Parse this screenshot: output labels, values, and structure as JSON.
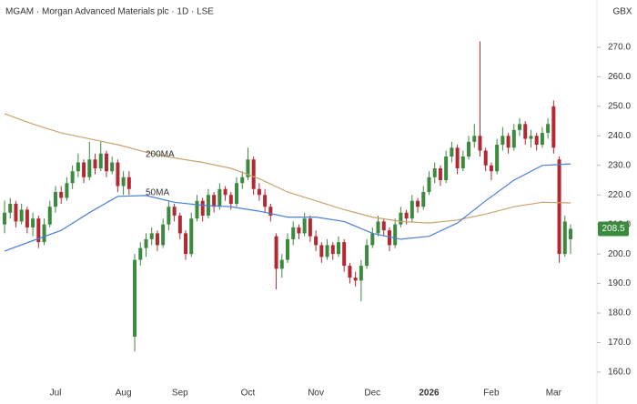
{
  "chart_data": {
    "type": "candlestick",
    "title": "MGAM · Morgan Advanced Materials plc · 1D · LSE",
    "currency": "GBX",
    "up_color": "#3b8a3e",
    "down_color": "#b22833",
    "open": [
      210,
      214,
      217,
      211,
      215,
      209,
      212,
      204,
      210,
      216,
      221,
      219,
      224,
      228,
      231,
      226,
      232,
      229,
      234,
      228,
      231,
      223,
      226,
      172,
      198,
      202,
      205,
      207,
      203,
      210,
      216,
      213,
      207,
      200,
      212,
      218,
      213,
      220,
      216,
      222,
      220,
      217,
      224,
      226,
      232,
      222,
      220,
      216,
      206,
      195,
      198,
      205,
      209,
      207,
      212,
      206,
      203,
      199,
      203,
      200,
      204,
      196,
      192,
      191,
      196,
      203,
      207,
      211,
      208,
      203,
      210,
      214,
      212,
      218,
      216,
      221,
      226,
      229,
      225,
      233,
      236,
      229,
      233,
      238,
      240,
      235,
      230,
      228,
      237,
      240,
      236,
      242,
      244,
      239,
      240,
      237,
      241,
      250,
      232,
      200,
      205
    ],
    "high": [
      218,
      219,
      218,
      217,
      216,
      214,
      213,
      212,
      218,
      223,
      223,
      226,
      230,
      234,
      232,
      238,
      234,
      238,
      235,
      233,
      232,
      228,
      228,
      200,
      204,
      207,
      209,
      208,
      212,
      218,
      217,
      214,
      208,
      214,
      220,
      219,
      222,
      221,
      224,
      223,
      221,
      226,
      228,
      236,
      233,
      224,
      222,
      217,
      207,
      200,
      207,
      211,
      210,
      214,
      213,
      208,
      204,
      205,
      204,
      206,
      205,
      197,
      194,
      198,
      205,
      209,
      213,
      212,
      209,
      212,
      216,
      215,
      220,
      219,
      223,
      228,
      231,
      230,
      235,
      238,
      237,
      235,
      240,
      244,
      272,
      236,
      231,
      239,
      243,
      241,
      244,
      246,
      245,
      242,
      241,
      243,
      246,
      252,
      233,
      213,
      210
    ],
    "low": [
      207,
      212,
      209,
      210,
      207,
      206,
      202,
      203,
      209,
      214,
      217,
      218,
      222,
      226,
      224,
      225,
      227,
      228,
      226,
      227,
      221,
      220,
      220,
      167,
      196,
      199,
      203,
      201,
      202,
      208,
      211,
      205,
      198,
      199,
      211,
      211,
      212,
      214,
      215,
      218,
      215,
      216,
      222,
      225,
      220,
      218,
      214,
      211,
      188,
      192,
      197,
      203,
      205,
      206,
      204,
      201,
      197,
      198,
      198,
      199,
      194,
      190,
      189,
      184,
      195,
      202,
      206,
      206,
      201,
      202,
      209,
      210,
      211,
      214,
      215,
      220,
      224,
      223,
      224,
      231,
      227,
      228,
      232,
      236,
      233,
      228,
      225,
      227,
      235,
      234,
      235,
      240,
      237,
      236,
      235,
      236,
      239,
      234,
      197,
      199,
      200
    ],
    "close": [
      214,
      217,
      211,
      215,
      209,
      212,
      204,
      210,
      216,
      221,
      219,
      224,
      228,
      231,
      226,
      232,
      229,
      234,
      228,
      231,
      223,
      226,
      222,
      198,
      202,
      205,
      207,
      203,
      210,
      216,
      213,
      207,
      200,
      212,
      218,
      213,
      220,
      216,
      222,
      220,
      217,
      224,
      226,
      232,
      222,
      220,
      216,
      213,
      195,
      198,
      205,
      209,
      207,
      212,
      206,
      203,
      199,
      203,
      200,
      204,
      196,
      192,
      191,
      196,
      203,
      207,
      211,
      208,
      203,
      210,
      214,
      212,
      218,
      216,
      221,
      226,
      229,
      225,
      233,
      236,
      229,
      233,
      238,
      240,
      235,
      230,
      228,
      237,
      240,
      236,
      242,
      244,
      239,
      240,
      237,
      241,
      244,
      236,
      200,
      211,
      208.5
    ],
    "series": [
      {
        "name": "200MA",
        "color": "#c9a46e",
        "x": [
          0,
          5,
          10,
          15,
          20,
          25,
          30,
          35,
          40,
          45,
          50,
          55,
          60,
          65,
          70,
          75,
          80,
          85,
          90,
          95,
          100
        ],
        "values": [
          247.5,
          244,
          241,
          239,
          237,
          234.5,
          232.5,
          231,
          229,
          225.5,
          221,
          218,
          215,
          212.5,
          211,
          210.5,
          211.5,
          213.5,
          216,
          217.5,
          217.3
        ]
      },
      {
        "name": "50MA",
        "color": "#4a7fd6",
        "x": [
          0,
          5,
          10,
          15,
          20,
          25,
          30,
          35,
          40,
          45,
          50,
          55,
          60,
          65,
          70,
          75,
          80,
          85,
          90,
          95,
          100
        ],
        "values": [
          201,
          204.5,
          208,
          214,
          219.5,
          219.8,
          217.5,
          216.5,
          216,
          214.5,
          212.5,
          212.5,
          211,
          207,
          205,
          206,
          210.5,
          218,
          225,
          230,
          230.5
        ]
      }
    ],
    "xticks": [
      {
        "value": 9,
        "label": "Jul"
      },
      {
        "value": 21,
        "label": "Aug"
      },
      {
        "value": 31,
        "label": "Sep"
      },
      {
        "value": 43,
        "label": "Oct"
      },
      {
        "value": 55,
        "label": "Nov"
      },
      {
        "value": 65,
        "label": "Dec"
      },
      {
        "value": 75,
        "label": "2026"
      },
      {
        "value": 86,
        "label": "Feb"
      },
      {
        "value": 97,
        "label": "Mar"
      }
    ],
    "ylim": [
      156.6,
      286
    ],
    "yticks": [
      {
        "value": 160,
        "label": "160.0"
      },
      {
        "value": 170,
        "label": "170.0"
      },
      {
        "value": 180,
        "label": "180.0"
      },
      {
        "value": 190,
        "label": "190.0"
      },
      {
        "value": 200,
        "label": "200.0"
      },
      {
        "value": 210,
        "label": "210.0"
      },
      {
        "value": 220,
        "label": "220.0"
      },
      {
        "value": 230,
        "label": "230.0"
      },
      {
        "value": 240,
        "label": "240.0"
      },
      {
        "value": 250,
        "label": "250.0"
      },
      {
        "value": 260,
        "label": "260.0"
      },
      {
        "value": 270,
        "label": "270.0"
      }
    ]
  }
}
